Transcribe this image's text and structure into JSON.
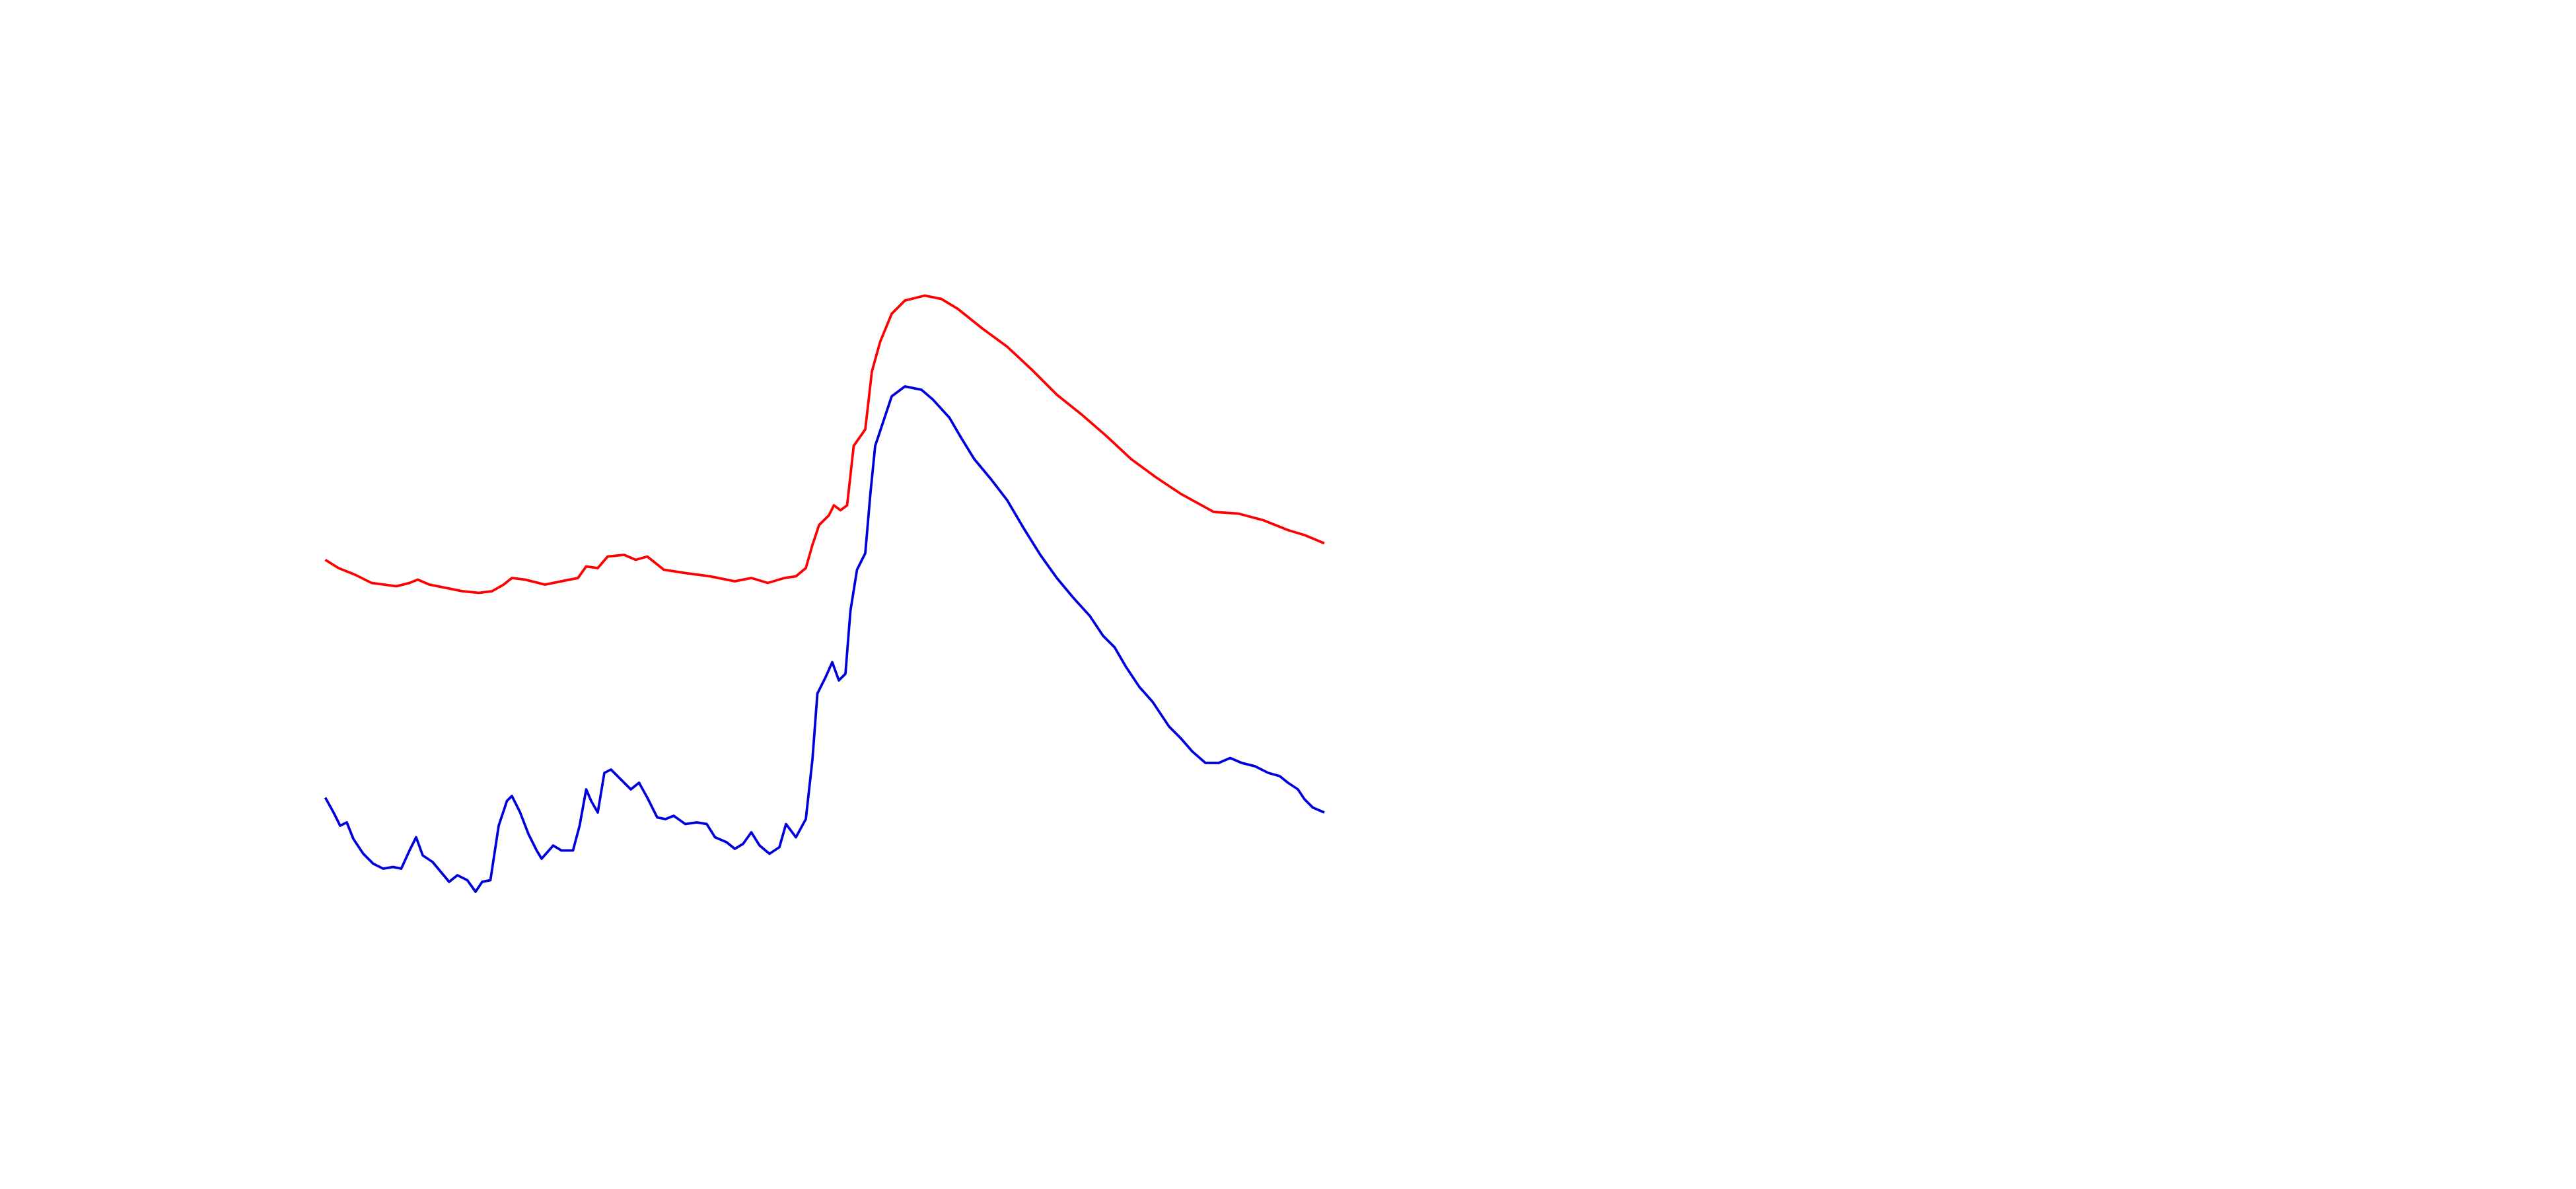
{
  "chart_data": {
    "type": "line",
    "xlim": [
      0,
      605
    ],
    "ylim": [
      0,
      720
    ],
    "series": [
      {
        "color": "#ff0000",
        "x": [
          0,
          8,
          18,
          28,
          43,
          51,
          56,
          63,
          73,
          83,
          93,
          101,
          108,
          113,
          121,
          133,
          143,
          153,
          158,
          165,
          171,
          181,
          188,
          195,
          205,
          218,
          233,
          248,
          258,
          268,
          278,
          285,
          291,
          295,
          299,
          305,
          308,
          312,
          316,
          320,
          327,
          331,
          336,
          343,
          351,
          363,
          373,
          383,
          398,
          413,
          428,
          443,
          458,
          473,
          488,
          503,
          518,
          538,
          553,
          568,
          583,
          593,
          605
        ],
        "values": [
          381,
          376,
          372,
          367,
          365,
          367,
          369,
          366,
          364,
          362,
          361,
          362,
          366,
          370,
          369,
          366,
          368,
          370,
          377,
          376,
          383,
          384,
          381,
          383,
          375,
          373,
          371,
          368,
          370,
          367,
          370,
          371,
          376,
          390,
          402,
          408,
          414,
          411,
          414,
          450,
          460,
          495,
          513,
          530,
          538,
          541,
          539,
          533,
          521,
          510,
          496,
          481,
          469,
          456,
          442,
          431,
          421,
          410,
          409,
          405,
          399,
          396,
          391
        ]
      },
      {
        "color": "#0000dd",
        "x": [
          0,
          5,
          9,
          13,
          17,
          23,
          29,
          35,
          41,
          46,
          51,
          55,
          59,
          65,
          70,
          75,
          80,
          86,
          91,
          95,
          100,
          105,
          110,
          113,
          118,
          123,
          128,
          131,
          138,
          143,
          150,
          154,
          158,
          161,
          165,
          169,
          173,
          179,
          185,
          190,
          195,
          201,
          206,
          211,
          218,
          225,
          231,
          236,
          243,
          248,
          253,
          258,
          263,
          269,
          275,
          279,
          285,
          291,
          295,
          298,
          303,
          307,
          311,
          315,
          318,
          322,
          327,
          330,
          333,
          338,
          343,
          351,
          361,
          368,
          378,
          385,
          393,
          403,
          413,
          423,
          433,
          443,
          453,
          463,
          471,
          478,
          485,
          493,
          501,
          505,
          511,
          518,
          525,
          533,
          541,
          548,
          555,
          563,
          571,
          578,
          583,
          589,
          593,
          598,
          605
        ],
        "values": [
          237,
          228,
          220,
          222,
          212,
          203,
          197,
          194,
          195,
          194,
          205,
          213,
          202,
          198,
          192,
          186,
          190,
          187,
          180,
          186,
          187,
          220,
          235,
          238,
          228,
          215,
          205,
          200,
          208,
          205,
          205,
          220,
          242,
          235,
          228,
          252,
          254,
          248,
          242,
          246,
          237,
          225,
          224,
          226,
          221,
          222,
          221,
          213,
          210,
          206,
          209,
          216,
          208,
          203,
          207,
          221,
          213,
          224,
          260,
          300,
          310,
          319,
          308,
          312,
          350,
          375,
          385,
          420,
          450,
          465,
          480,
          486,
          484,
          478,
          467,
          455,
          442,
          430,
          417,
          400,
          384,
          370,
          358,
          347,
          335,
          328,
          316,
          304,
          295,
          289,
          280,
          273,
          265,
          258,
          258,
          261,
          258,
          256,
          252,
          250,
          246,
          242,
          236,
          231,
          228
        ]
      }
    ]
  }
}
